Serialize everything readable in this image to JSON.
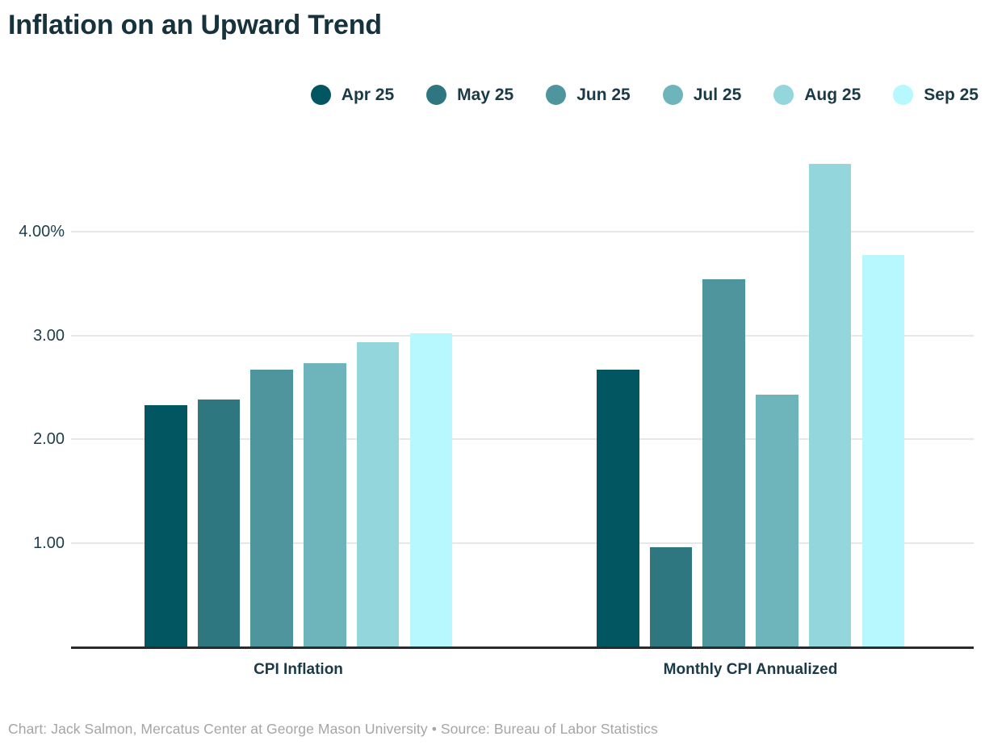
{
  "title": "Inflation on an Upward Trend",
  "footer": "Chart: Jack Salmon, Mercatus Center at George Mason University • Source: Bureau of Labor Statistics",
  "chart_data": {
    "type": "bar",
    "title": "Inflation on an Upward Trend",
    "groups": [
      "CPI Inflation",
      "Monthly CPI Annualized"
    ],
    "series": [
      {
        "name": "Apr 25",
        "color": "#025661",
        "values": [
          2.33,
          2.67
        ]
      },
      {
        "name": "May 25",
        "color": "#2e7780",
        "values": [
          2.38,
          0.96
        ]
      },
      {
        "name": "Jun 25",
        "color": "#4f959e",
        "values": [
          2.67,
          3.54
        ]
      },
      {
        "name": "Jul 25",
        "color": "#6eb4bb",
        "values": [
          2.73,
          2.43
        ]
      },
      {
        "name": "Aug 25",
        "color": "#93d7dd",
        "values": [
          2.94,
          4.66
        ]
      },
      {
        "name": "Sep 25",
        "color": "#b6f8fe",
        "values": [
          3.02,
          3.78
        ]
      }
    ],
    "yticks": [
      {
        "value": 1,
        "label": "1.00"
      },
      {
        "value": 2,
        "label": "2.00"
      },
      {
        "value": 3,
        "label": "3.00"
      },
      {
        "value": 4,
        "label": "4.00%"
      }
    ],
    "ylim": [
      0,
      4.8
    ],
    "grid": true,
    "legend_position": "top",
    "xlabel": "",
    "ylabel": ""
  },
  "colors": {
    "title_text": "#16323d",
    "label_text": "#1b3a47",
    "axis_text": "#1d3e4b",
    "footer_text": "#a5a5a5",
    "gridline": "#e7e7e7",
    "baseline": "#2b2b2b",
    "background": "#ffffff"
  }
}
